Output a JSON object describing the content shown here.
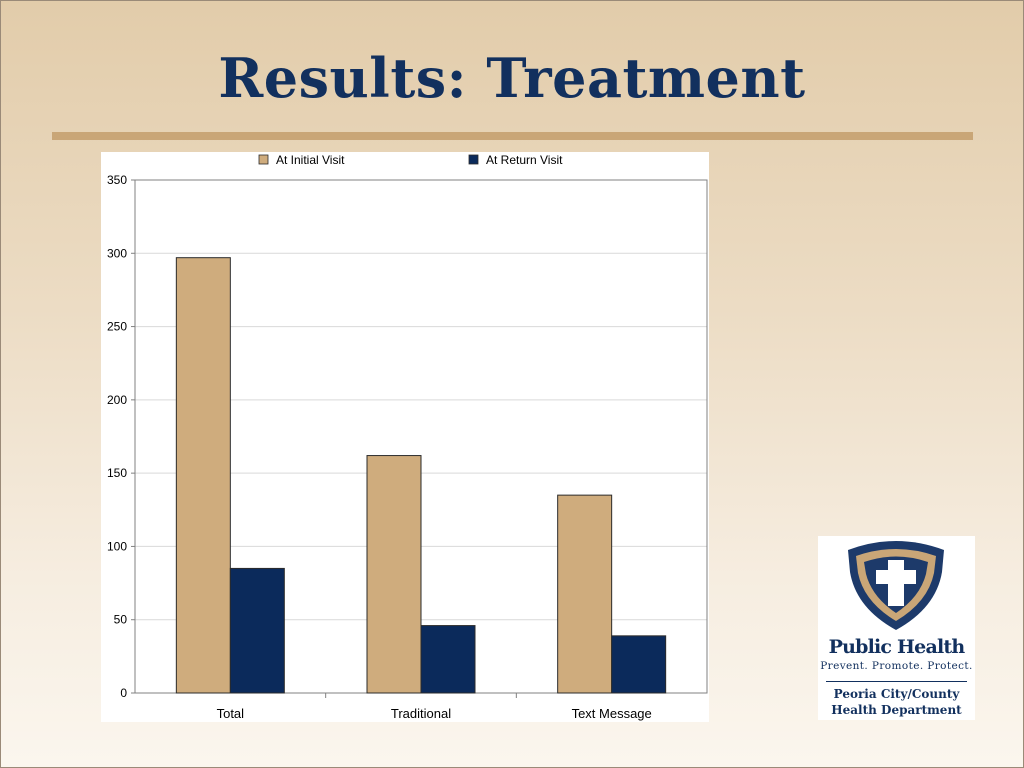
{
  "slide": {
    "title": "Results: Treatment"
  },
  "colors": {
    "title_text": "#12305e",
    "accent_rule": "#c9a677",
    "initial_visit_bar": "#cfac7d",
    "return_visit_bar": "#0b2a5b",
    "gridline": "#d9d9d9",
    "axis": "#808080"
  },
  "chart_data": {
    "type": "bar",
    "categories": [
      "Total",
      "Traditional",
      "Text Message"
    ],
    "series": [
      {
        "name": "At Initial Visit",
        "values": [
          297,
          162,
          135
        ]
      },
      {
        "name": "At Return Visit",
        "values": [
          85,
          46,
          39
        ]
      }
    ],
    "title": "",
    "xlabel": "",
    "ylabel": "",
    "ylim": [
      0,
      350
    ],
    "yticks": [
      0,
      50,
      100,
      150,
      200,
      250,
      300,
      350
    ],
    "grid": true,
    "legend_position": "top"
  },
  "logo": {
    "icon": "shield-cross-icon",
    "name": "Public Health",
    "tagline": "Prevent. Promote. Protect.",
    "department_line1": "Peoria City/County",
    "department_line2": "Health Department"
  }
}
